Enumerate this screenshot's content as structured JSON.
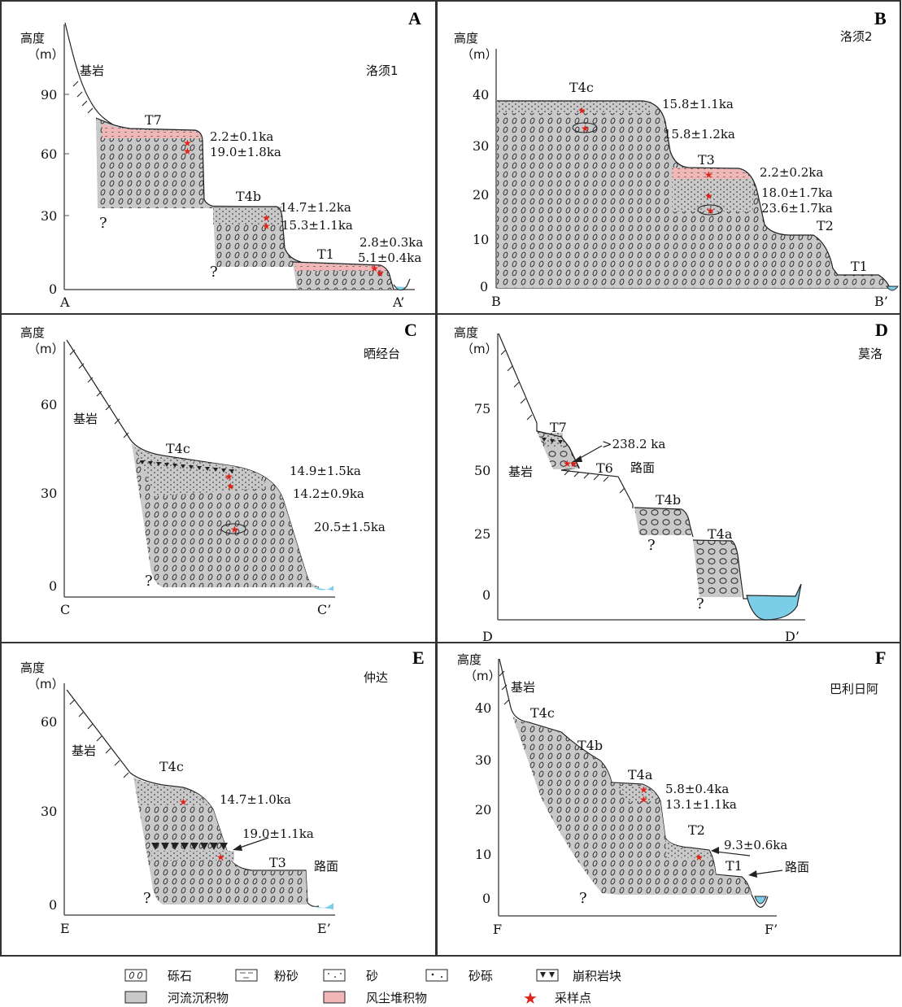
{
  "panels": [
    {
      "id": "A",
      "site": "洛须1",
      "y_axis_title": "高度",
      "y_axis_unit": "（m）",
      "y_ticks": [
        "90",
        "60",
        "30",
        "0"
      ],
      "section_start": "A",
      "section_end": "A’",
      "bedrock": "基岩",
      "terraces": [
        "T7",
        "T4b",
        "T1"
      ],
      "ages": [
        "2.2±0.1ka",
        "19.0±1.8ka",
        "14.7±1.2ka",
        "15.3±1.1ka",
        "2.8±0.3ka",
        "5.1±0.4ka"
      ]
    },
    {
      "id": "B",
      "site": "洛须2",
      "y_axis_title": "高度",
      "y_axis_unit": "（m）",
      "y_ticks": [
        "40",
        "30",
        "20",
        "10",
        "0"
      ],
      "section_start": "B",
      "section_end": "B’",
      "terraces": [
        "T4c",
        "T3",
        "T2",
        "T1"
      ],
      "ages": [
        "15.8±1.1ka",
        "15.8±1.2ka",
        "2.2±0.2ka",
        "18.0±1.7ka",
        "23.6±1.7ka"
      ]
    },
    {
      "id": "C",
      "site": "晒经台",
      "y_axis_title": "高度",
      "y_axis_unit": "（m）",
      "y_ticks": [
        "60",
        "30",
        "0"
      ],
      "section_start": "C",
      "section_end": "C’",
      "bedrock": "基岩",
      "terraces": [
        "T4c"
      ],
      "ages": [
        "14.9±1.5ka",
        "14.2±0.9ka",
        "20.5±1.5ka"
      ]
    },
    {
      "id": "D",
      "site": "莫洛",
      "y_axis_title": "高度",
      "y_axis_unit": "（m）",
      "y_ticks": [
        "75",
        "50",
        "25",
        "0"
      ],
      "section_start": "D",
      "section_end": "D’",
      "bedrock": "基岩",
      "road": "路面",
      "terraces": [
        "T7",
        "T6",
        "T4b",
        "T4a"
      ],
      "ages": [
        ">238.2 ka"
      ]
    },
    {
      "id": "E",
      "site": "仲达",
      "y_axis_title": "高度",
      "y_axis_unit": "（m）",
      "y_ticks": [
        "60",
        "30",
        "0"
      ],
      "section_start": "E",
      "section_end": "E’",
      "bedrock": "基岩",
      "road": "路面",
      "terraces": [
        "T4c",
        "T3"
      ],
      "ages": [
        "14.7±1.0ka",
        "19.0±1.1ka"
      ]
    },
    {
      "id": "F",
      "site": "巴利日阿",
      "y_axis_title": "高度",
      "y_axis_unit": "（m）",
      "y_ticks": [
        "40",
        "30",
        "20",
        "10",
        "0"
      ],
      "section_start": "F",
      "section_end": "F’",
      "bedrock": "基岩",
      "road": "路面",
      "terraces": [
        "T4c",
        "T4b",
        "T4a",
        "T2",
        "T1"
      ],
      "ages": [
        "5.8±0.4ka",
        "13.1±1.1ka",
        "9.3±0.6ka"
      ]
    }
  ],
  "legend": [
    "砾石",
    "粉砂",
    "砂",
    "砂砾",
    "崩积岩块",
    "河流沉积物",
    "风尘堆积物",
    "采样点"
  ],
  "unknown_mark": "?",
  "colors": {
    "fluvial": "#c9c9c9",
    "eolian": "#f1b7b7",
    "sample": "#e2231a",
    "water": "#7ccde8",
    "frame": "#333333"
  }
}
